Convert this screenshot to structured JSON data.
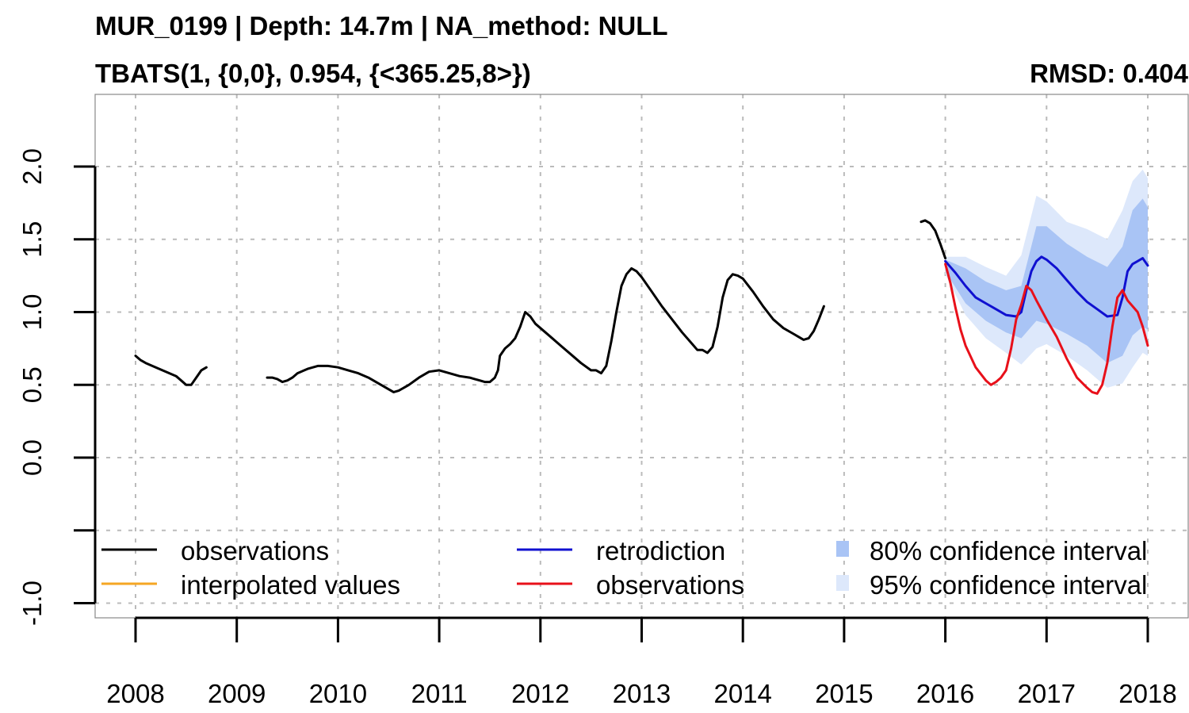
{
  "title": "MUR_0199 | Depth: 14.7m | NA_method: NULL",
  "subtitle": "TBATS(1, {0,0}, 0.954, {<365.25,8>})",
  "rmsd": "RMSD: 0.404",
  "colors": {
    "observations": "#000000",
    "interpolated": "#f5a623",
    "retrodiction": "#1010d0",
    "observations_test": "#e8101a",
    "ci80": "#a9c4f5",
    "ci95": "#dde8fb",
    "grid": "#bbbbbb"
  },
  "legend": [
    {
      "label": "observations",
      "kind": "line",
      "color_key": "observations"
    },
    {
      "label": "interpolated values",
      "kind": "line",
      "color_key": "interpolated"
    },
    {
      "label": "retrodiction",
      "kind": "line",
      "color_key": "retrodiction"
    },
    {
      "label": "observations",
      "kind": "line",
      "color_key": "observations_test"
    },
    {
      "label": "80% confidence interval",
      "kind": "box",
      "color_key": "ci80"
    },
    {
      "label": "95% confidence interval",
      "kind": "box",
      "color_key": "ci95"
    }
  ],
  "chart_data": {
    "type": "line",
    "title": "MUR_0199 | Depth: 14.7m | NA_method: NULL",
    "subtitle": "TBATS(1, {0,0}, 0.954, {<365.25,8>})",
    "annotation": "RMSD: 0.404",
    "xlim": [
      2007.6,
      2018.4
    ],
    "ylim": [
      -1.1,
      2.5
    ],
    "x_ticks": [
      2008,
      2009,
      2010,
      2011,
      2012,
      2013,
      2014,
      2015,
      2016,
      2017,
      2018
    ],
    "x_tick_labels": [
      "2008",
      "2009",
      "2010",
      "2011",
      "2012",
      "2013",
      "2014",
      "2015",
      "2016",
      "2017",
      "2018"
    ],
    "y_ticks": [
      -1.0,
      -0.5,
      0.0,
      0.5,
      1.0,
      1.5,
      2.0
    ],
    "y_tick_labels": [
      "-1.0",
      "",
      "0.0",
      "0.5",
      "1.0",
      "1.5",
      "2.0"
    ],
    "grid": true,
    "legend_position": "bottom",
    "series": [
      {
        "name": "observations",
        "color_key": "observations",
        "segments": [
          [
            [
              2008.0,
              0.7
            ],
            [
              2008.05,
              0.67
            ],
            [
              2008.1,
              0.65
            ],
            [
              2008.2,
              0.62
            ],
            [
              2008.3,
              0.59
            ],
            [
              2008.4,
              0.56
            ],
            [
              2008.45,
              0.53
            ],
            [
              2008.5,
              0.5
            ],
            [
              2008.55,
              0.5
            ],
            [
              2008.6,
              0.55
            ],
            [
              2008.65,
              0.6
            ],
            [
              2008.7,
              0.62
            ]
          ],
          [
            [
              2009.3,
              0.55
            ],
            [
              2009.35,
              0.55
            ],
            [
              2009.4,
              0.54
            ],
            [
              2009.45,
              0.52
            ],
            [
              2009.5,
              0.53
            ],
            [
              2009.55,
              0.55
            ],
            [
              2009.6,
              0.58
            ],
            [
              2009.7,
              0.61
            ],
            [
              2009.8,
              0.63
            ],
            [
              2009.9,
              0.63
            ],
            [
              2010.0,
              0.62
            ],
            [
              2010.1,
              0.6
            ],
            [
              2010.2,
              0.58
            ],
            [
              2010.3,
              0.55
            ],
            [
              2010.4,
              0.51
            ],
            [
              2010.5,
              0.47
            ],
            [
              2010.55,
              0.45
            ],
            [
              2010.6,
              0.46
            ],
            [
              2010.7,
              0.5
            ],
            [
              2010.8,
              0.55
            ],
            [
              2010.9,
              0.59
            ],
            [
              2011.0,
              0.6
            ],
            [
              2011.1,
              0.58
            ],
            [
              2011.2,
              0.56
            ],
            [
              2011.3,
              0.55
            ],
            [
              2011.35,
              0.54
            ],
            [
              2011.4,
              0.53
            ],
            [
              2011.45,
              0.52
            ],
            [
              2011.5,
              0.52
            ],
            [
              2011.55,
              0.55
            ],
            [
              2011.58,
              0.6
            ],
            [
              2011.6,
              0.7
            ],
            [
              2011.65,
              0.75
            ],
            [
              2011.7,
              0.78
            ],
            [
              2011.75,
              0.82
            ],
            [
              2011.8,
              0.9
            ],
            [
              2011.85,
              1.0
            ],
            [
              2011.9,
              0.97
            ],
            [
              2011.95,
              0.92
            ],
            [
              2012.0,
              0.89
            ],
            [
              2012.1,
              0.83
            ],
            [
              2012.2,
              0.77
            ],
            [
              2012.3,
              0.71
            ],
            [
              2012.4,
              0.65
            ],
            [
              2012.5,
              0.6
            ],
            [
              2012.55,
              0.6
            ],
            [
              2012.6,
              0.58
            ],
            [
              2012.65,
              0.63
            ],
            [
              2012.7,
              0.8
            ],
            [
              2012.75,
              1.0
            ],
            [
              2012.8,
              1.18
            ],
            [
              2012.85,
              1.26
            ],
            [
              2012.9,
              1.3
            ],
            [
              2012.95,
              1.28
            ],
            [
              2013.0,
              1.24
            ],
            [
              2013.1,
              1.14
            ],
            [
              2013.2,
              1.04
            ],
            [
              2013.3,
              0.95
            ],
            [
              2013.4,
              0.86
            ],
            [
              2013.5,
              0.78
            ],
            [
              2013.55,
              0.74
            ],
            [
              2013.6,
              0.74
            ],
            [
              2013.65,
              0.72
            ],
            [
              2013.7,
              0.76
            ],
            [
              2013.75,
              0.9
            ],
            [
              2013.8,
              1.1
            ],
            [
              2013.85,
              1.22
            ],
            [
              2013.9,
              1.26
            ],
            [
              2013.95,
              1.25
            ],
            [
              2014.0,
              1.23
            ],
            [
              2014.1,
              1.14
            ],
            [
              2014.2,
              1.04
            ],
            [
              2014.3,
              0.95
            ],
            [
              2014.4,
              0.89
            ],
            [
              2014.5,
              0.85
            ],
            [
              2014.55,
              0.83
            ],
            [
              2014.6,
              0.81
            ],
            [
              2014.65,
              0.82
            ],
            [
              2014.7,
              0.87
            ],
            [
              2014.75,
              0.95
            ],
            [
              2014.8,
              1.04
            ]
          ],
          [
            [
              2015.76,
              1.62
            ],
            [
              2015.8,
              1.63
            ],
            [
              2015.85,
              1.61
            ],
            [
              2015.9,
              1.56
            ],
            [
              2015.95,
              1.47
            ],
            [
              2016.0,
              1.37
            ]
          ]
        ]
      },
      {
        "name": "retrodiction",
        "color_key": "retrodiction",
        "segments": [
          [
            [
              2016.0,
              1.35
            ],
            [
              2016.1,
              1.27
            ],
            [
              2016.2,
              1.18
            ],
            [
              2016.3,
              1.1
            ],
            [
              2016.4,
              1.06
            ],
            [
              2016.5,
              1.02
            ],
            [
              2016.6,
              0.98
            ],
            [
              2016.7,
              0.97
            ],
            [
              2016.75,
              1.0
            ],
            [
              2016.8,
              1.15
            ],
            [
              2016.85,
              1.28
            ],
            [
              2016.9,
              1.35
            ],
            [
              2016.95,
              1.38
            ],
            [
              2017.0,
              1.36
            ],
            [
              2017.1,
              1.3
            ],
            [
              2017.2,
              1.22
            ],
            [
              2017.3,
              1.14
            ],
            [
              2017.4,
              1.07
            ],
            [
              2017.5,
              1.02
            ],
            [
              2017.6,
              0.97
            ],
            [
              2017.7,
              0.98
            ],
            [
              2017.75,
              1.1
            ],
            [
              2017.8,
              1.28
            ],
            [
              2017.85,
              1.33
            ],
            [
              2017.9,
              1.35
            ],
            [
              2017.95,
              1.37
            ],
            [
              2018.0,
              1.32
            ]
          ]
        ]
      },
      {
        "name": "observations",
        "color_key": "observations_test",
        "segments": [
          [
            [
              2016.0,
              1.33
            ],
            [
              2016.05,
              1.2
            ],
            [
              2016.1,
              1.03
            ],
            [
              2016.15,
              0.88
            ],
            [
              2016.2,
              0.77
            ],
            [
              2016.3,
              0.62
            ],
            [
              2016.4,
              0.53
            ],
            [
              2016.45,
              0.5
            ],
            [
              2016.5,
              0.52
            ],
            [
              2016.55,
              0.55
            ],
            [
              2016.6,
              0.6
            ],
            [
              2016.65,
              0.75
            ],
            [
              2016.7,
              0.95
            ],
            [
              2016.75,
              1.05
            ],
            [
              2016.8,
              1.18
            ],
            [
              2016.85,
              1.15
            ],
            [
              2016.9,
              1.08
            ],
            [
              2017.0,
              0.95
            ],
            [
              2017.1,
              0.83
            ],
            [
              2017.2,
              0.68
            ],
            [
              2017.3,
              0.55
            ],
            [
              2017.4,
              0.48
            ],
            [
              2017.45,
              0.45
            ],
            [
              2017.5,
              0.44
            ],
            [
              2017.55,
              0.5
            ],
            [
              2017.6,
              0.65
            ],
            [
              2017.65,
              0.9
            ],
            [
              2017.7,
              1.1
            ],
            [
              2017.75,
              1.15
            ],
            [
              2017.8,
              1.08
            ],
            [
              2017.9,
              1.0
            ],
            [
              2017.95,
              0.9
            ],
            [
              2018.0,
              0.77
            ]
          ]
        ]
      }
    ],
    "ci80": {
      "x": [
        2016.0,
        2016.2,
        2016.4,
        2016.6,
        2016.75,
        2016.9,
        2017.0,
        2017.2,
        2017.4,
        2017.6,
        2017.75,
        2017.85,
        2017.95,
        2018.0
      ],
      "lower": [
        1.28,
        1.06,
        0.94,
        0.86,
        0.82,
        0.94,
        0.92,
        0.85,
        0.77,
        0.65,
        0.7,
        0.84,
        0.9,
        0.88
      ],
      "upper": [
        1.36,
        1.3,
        1.21,
        1.15,
        1.18,
        1.59,
        1.59,
        1.47,
        1.38,
        1.31,
        1.45,
        1.7,
        1.78,
        1.72
      ]
    },
    "ci95": {
      "x": [
        2016.0,
        2016.2,
        2016.4,
        2016.6,
        2016.75,
        2016.9,
        2017.0,
        2017.2,
        2017.4,
        2017.6,
        2017.75,
        2017.85,
        2017.95,
        2018.0
      ],
      "lower": [
        1.26,
        0.98,
        0.82,
        0.72,
        0.64,
        0.75,
        0.78,
        0.7,
        0.6,
        0.48,
        0.51,
        0.62,
        0.72,
        0.7
      ],
      "upper": [
        1.38,
        1.38,
        1.31,
        1.25,
        1.39,
        1.8,
        1.76,
        1.62,
        1.57,
        1.5,
        1.7,
        1.9,
        1.98,
        1.92
      ]
    }
  }
}
